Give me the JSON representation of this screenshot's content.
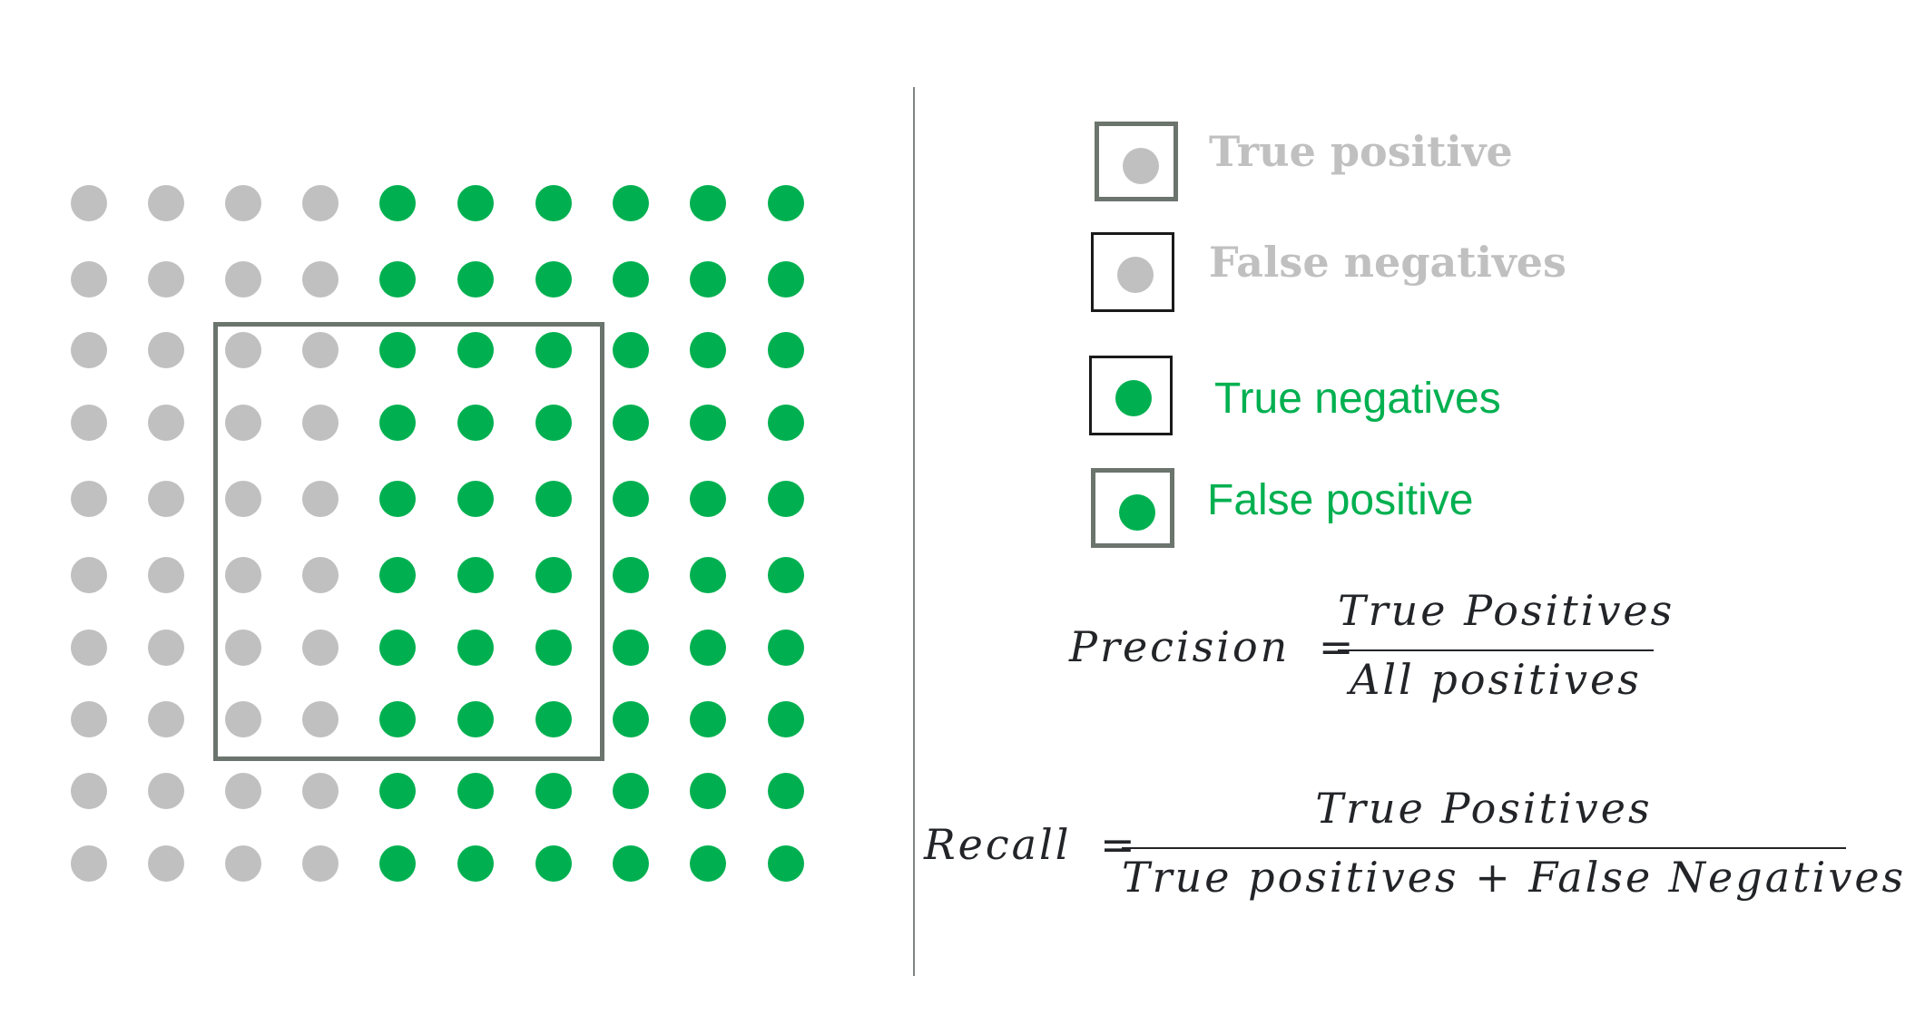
{
  "colors": {
    "gray_dot": "#c0c0c0",
    "green_dot": "#00b050",
    "box_border_thick": "#6b746d",
    "box_border_thin": "#1a1a1a",
    "formula_text": "#222428"
  },
  "grid": {
    "rows": 10,
    "columns": 10,
    "gray_columns": 4,
    "green_columns": 6,
    "selection": {
      "rows_from": 3,
      "rows_to": 8,
      "cols_from": 3,
      "cols_to": 7
    }
  },
  "legend": {
    "items": [
      {
        "label": "True positive",
        "dot_color": "#c0c0c0",
        "border": "thick"
      },
      {
        "label": "False negatives",
        "dot_color": "#c0c0c0",
        "border": "thin"
      },
      {
        "label": "True negatives",
        "dot_color": "#00b050",
        "border": "thin"
      },
      {
        "label": "False positive",
        "dot_color": "#00b050",
        "border": "thick"
      }
    ]
  },
  "formulas": {
    "precision": {
      "lhs": "Precision",
      "equals": "=",
      "numerator": "True Positives",
      "denominator": "All positives"
    },
    "recall": {
      "lhs": "Recall",
      "equals": "=",
      "numerator": "True Positives",
      "denominator": "True positives + False Negatives"
    }
  }
}
